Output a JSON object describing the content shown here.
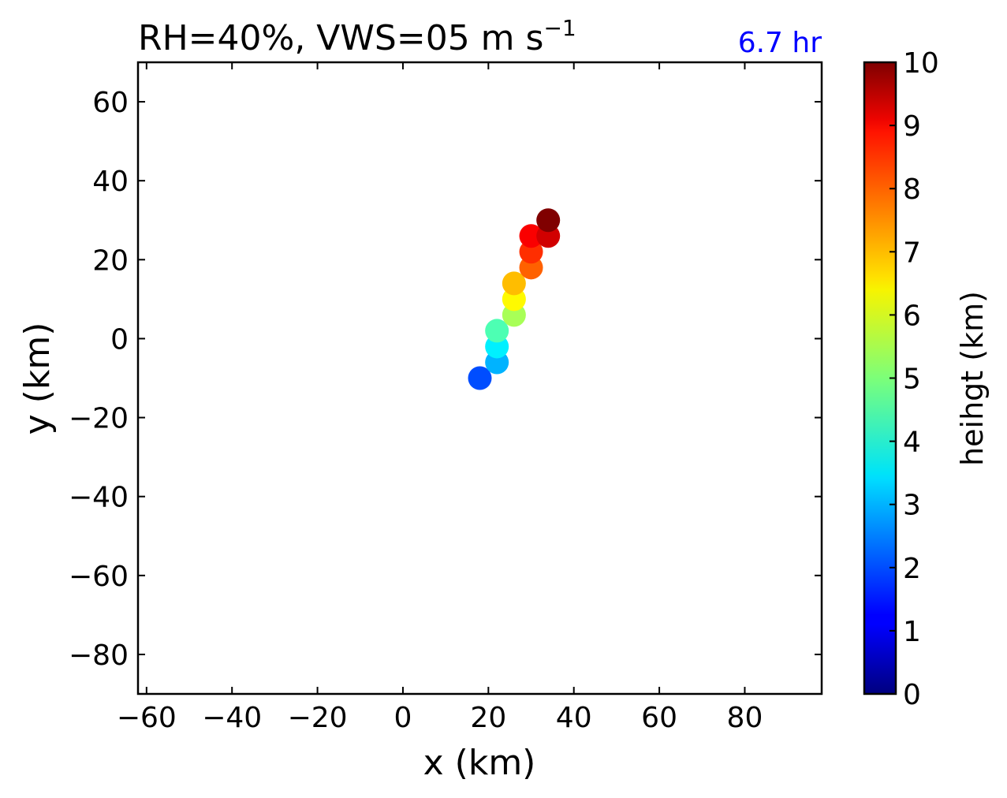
{
  "chart_data": {
    "type": "scatter",
    "title": "RH=40%, VWS=05 m s",
    "title_superscript": "−1",
    "annotation": {
      "text": "6.7 hr",
      "color": "#0000ff"
    },
    "xlabel": "x (km)",
    "ylabel": "y (km)",
    "xlim": [
      -62,
      98
    ],
    "ylim": [
      -90,
      70
    ],
    "xticks": [
      -60,
      -40,
      -20,
      0,
      20,
      40,
      60,
      80
    ],
    "yticks": [
      60,
      40,
      20,
      0,
      -20,
      -40,
      -60,
      -80
    ],
    "xtick_labels": [
      "−60",
      "−40",
      "−20",
      "0",
      "20",
      "40",
      "60",
      "80"
    ],
    "ytick_labels": [
      "60",
      "40",
      "20",
      "0",
      "−20",
      "−40",
      "−60",
      "−80"
    ],
    "colorbar": {
      "label": "heihgt (km)",
      "colormap": "jet",
      "range": [
        0,
        10
      ],
      "ticks": [
        "0",
        "1",
        "2",
        "3",
        "4",
        "5",
        "6",
        "7",
        "8",
        "9",
        "10"
      ]
    },
    "points": [
      {
        "x": 18,
        "y": -10,
        "height": 2.0
      },
      {
        "x": 22,
        "y": -6,
        "height": 3.0
      },
      {
        "x": 22,
        "y": -2,
        "height": 3.6
      },
      {
        "x": 22,
        "y": 2,
        "height": 4.5
      },
      {
        "x": 26,
        "y": 6,
        "height": 5.4
      },
      {
        "x": 26,
        "y": 10,
        "height": 6.3
      },
      {
        "x": 26,
        "y": 14,
        "height": 6.9
      },
      {
        "x": 30,
        "y": 18,
        "height": 7.8
      },
      {
        "x": 30,
        "y": 22,
        "height": 8.3
      },
      {
        "x": 30,
        "y": 26,
        "height": 8.8
      },
      {
        "x": 34,
        "y": 26,
        "height": 9.2
      },
      {
        "x": 34,
        "y": 30,
        "height": 10.0
      }
    ]
  }
}
